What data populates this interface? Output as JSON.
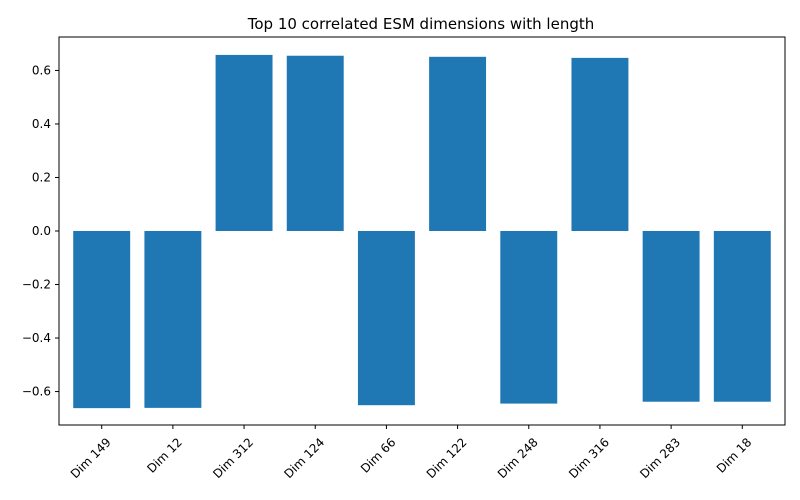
{
  "chart_data": {
    "type": "bar",
    "title": "Top 10 correlated ESM dimensions with length",
    "xlabel": "",
    "ylabel": "",
    "categories": [
      "Dim 149",
      "Dim 12",
      "Dim 312",
      "Dim 124",
      "Dim 66",
      "Dim 122",
      "Dim 248",
      "Dim 316",
      "Dim 283",
      "Dim 18"
    ],
    "values": [
      -0.662,
      -0.661,
      0.658,
      0.655,
      -0.651,
      0.651,
      -0.645,
      0.647,
      -0.638,
      -0.638
    ],
    "ylim": [
      -0.725,
      0.725
    ],
    "yticks": [
      -0.6,
      -0.4,
      -0.2,
      0.0,
      0.2,
      0.4,
      0.6
    ],
    "ytick_labels": [
      "−0.6",
      "−0.4",
      "−0.2",
      "0.0",
      "0.2",
      "0.4",
      "0.6"
    ],
    "bar_color": "#1f77b4",
    "grid": false,
    "legend": "none"
  }
}
